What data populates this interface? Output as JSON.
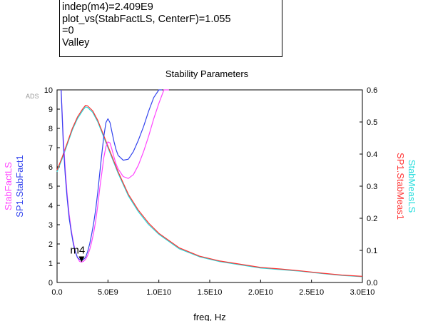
{
  "marker_readout": {
    "lines": [
      "indep(m4)=2.409E9",
      "plot_vs(StabFactLS, CenterF)=1.055",
      "=0",
      "Valley"
    ]
  },
  "chart_data": {
    "type": "line",
    "title": "Stability Parameters",
    "watermark": "ADS",
    "xlabel": "freq, Hz",
    "xlim": [
      0,
      30000000000.0
    ],
    "ylim_left": [
      0,
      10
    ],
    "ylim_right": [
      0,
      0.6
    ],
    "x_ticks": [
      "0.0",
      "5.0E9",
      "1.0E10",
      "1.5E10",
      "2.0E10",
      "2.5E10",
      "3.0E10"
    ],
    "y_ticks_left": [
      "0",
      "1",
      "2",
      "3",
      "4",
      "5",
      "6",
      "7",
      "8",
      "9",
      "10"
    ],
    "y_ticks_right": [
      "0.0",
      "0.1",
      "0.2",
      "0.3",
      "0.4",
      "0.5",
      "0.6"
    ],
    "left_axis_labels": [
      "StabFactLS",
      "SP1.StabFact1"
    ],
    "right_axis_labels": [
      "StabMeasLS",
      "SP1.StabMeas1"
    ],
    "colors": {
      "magenta": "#ff44ff",
      "blue": "#3344ee",
      "cyan": "#22dddd",
      "red": "#ff3333"
    },
    "marker": {
      "name": "m4",
      "x": 2409000000.0,
      "y": 1.055
    },
    "series": [
      {
        "name": "StabFactLS",
        "axis": "left",
        "color": "#ff44ff",
        "x": [
          400000000.0,
          600000000.0,
          800000000.0,
          1000000000.0,
          1200000000.0,
          1400000000.0,
          1600000000.0,
          1800000000.0,
          2000000000.0,
          2200000000.0,
          2400000000.0,
          2600000000.0,
          2800000000.0,
          3000000000.0,
          3200000000.0,
          3400000000.0,
          3600000000.0,
          3800000000.0,
          4000000000.0,
          4200000000.0,
          4400000000.0,
          4600000000.0,
          4800000000.0,
          5000000000.0,
          5200000000.0,
          5400000000.0,
          5600000000.0,
          5800000000.0,
          6000000000.0,
          6500000000.0,
          7000000000.0,
          7500000000.0,
          8000000000.0,
          8500000000.0,
          9000000000.0,
          9500000000.0,
          10000000000.0,
          10500000000.0,
          11000000000.0
        ],
        "y": [
          10.0,
          7.6,
          5.9,
          4.5,
          3.5,
          2.7,
          2.1,
          1.6,
          1.3,
          1.1,
          1.055,
          1.1,
          1.2,
          1.4,
          1.7,
          2.1,
          2.6,
          3.2,
          4.0,
          4.9,
          5.7,
          6.5,
          7.05,
          7.3,
          7.25,
          6.9,
          6.5,
          6.15,
          5.9,
          5.5,
          5.4,
          5.6,
          6.1,
          6.8,
          7.6,
          8.5,
          9.3,
          10.0,
          10.0
        ]
      },
      {
        "name": "SP1.StabFact1",
        "axis": "left",
        "color": "#3344ee",
        "x": [
          400000000.0,
          600000000.0,
          800000000.0,
          1000000000.0,
          1200000000.0,
          1400000000.0,
          1600000000.0,
          1800000000.0,
          2000000000.0,
          2200000000.0,
          2400000000.0,
          2600000000.0,
          2800000000.0,
          3000000000.0,
          3200000000.0,
          3400000000.0,
          3600000000.0,
          3800000000.0,
          4000000000.0,
          4200000000.0,
          4400000000.0,
          4600000000.0,
          4800000000.0,
          5000000000.0,
          5200000000.0,
          5400000000.0,
          5600000000.0,
          5800000000.0,
          6000000000.0,
          6500000000.0,
          7000000000.0,
          7500000000.0,
          8000000000.0,
          8500000000.0,
          9000000000.0,
          9500000000.0,
          10000000000.0,
          10300000000.0
        ],
        "y": [
          10.0,
          7.3,
          5.6,
          4.3,
          3.3,
          2.6,
          2.0,
          1.6,
          1.3,
          1.2,
          1.15,
          1.2,
          1.3,
          1.6,
          2.0,
          2.5,
          3.1,
          3.8,
          4.7,
          5.7,
          6.7,
          7.6,
          8.3,
          8.5,
          8.3,
          7.8,
          7.3,
          6.9,
          6.6,
          6.35,
          6.4,
          6.8,
          7.4,
          8.1,
          8.9,
          9.6,
          10.0,
          10.0
        ]
      },
      {
        "name": "StabMeasLS",
        "axis": "right",
        "color": "#22dddd",
        "x": [
          0.0,
          500000000.0,
          1000000000.0,
          1500000000.0,
          2000000000.0,
          2500000000.0,
          2800000000.0,
          3000000000.0,
          3500000000.0,
          4000000000.0,
          4500000000.0,
          5000000000.0,
          6000000000.0,
          7000000000.0,
          8000000000.0,
          9000000000.0,
          10000000000.0,
          12000000000.0,
          14000000000.0,
          16000000000.0,
          18000000000.0,
          20000000000.0,
          22000000000.0,
          24000000000.0,
          26000000000.0,
          28000000000.0,
          30000000000.0
        ],
        "y": [
          0.345,
          0.385,
          0.43,
          0.475,
          0.51,
          0.535,
          0.547,
          0.545,
          0.53,
          0.5,
          0.46,
          0.42,
          0.34,
          0.27,
          0.22,
          0.18,
          0.15,
          0.105,
          0.08,
          0.065,
          0.055,
          0.045,
          0.04,
          0.035,
          0.028,
          0.022,
          0.018
        ]
      },
      {
        "name": "SP1.StabMeas1",
        "axis": "right",
        "color": "#ff3333",
        "x": [
          0.0,
          500000000.0,
          1000000000.0,
          1500000000.0,
          2000000000.0,
          2500000000.0,
          2800000000.0,
          3000000000.0,
          3500000000.0,
          4000000000.0,
          4500000000.0,
          5000000000.0,
          6000000000.0,
          7000000000.0,
          8000000000.0,
          9000000000.0,
          10000000000.0,
          12000000000.0,
          14000000000.0,
          16000000000.0,
          18000000000.0,
          20000000000.0,
          22000000000.0,
          24000000000.0,
          26000000000.0,
          28000000000.0,
          30000000000.0
        ],
        "y": [
          0.35,
          0.39,
          0.435,
          0.48,
          0.515,
          0.54,
          0.552,
          0.55,
          0.535,
          0.505,
          0.465,
          0.425,
          0.345,
          0.275,
          0.225,
          0.185,
          0.153,
          0.108,
          0.082,
          0.067,
          0.057,
          0.047,
          0.042,
          0.036,
          0.029,
          0.023,
          0.019
        ]
      }
    ]
  }
}
